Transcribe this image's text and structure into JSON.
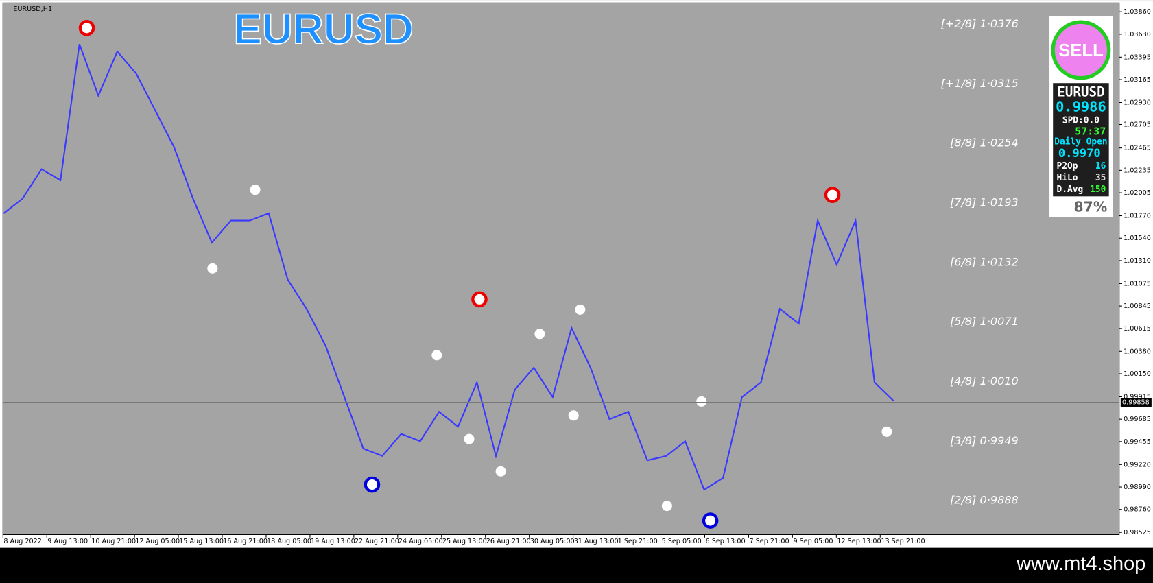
{
  "window": {
    "label": "EURUSD,H1"
  },
  "title": "EURUSD",
  "chart": {
    "type": "line",
    "ylim": [
      0.98502,
      1.0395
    ],
    "yticks": [
      {
        "value": 1.0386,
        "label": "1.03860"
      },
      {
        "value": 1.0363,
        "label": "1.03630"
      },
      1.03395,
      1.03165,
      {
        "value": 1.0293,
        "label": "1.02930"
      },
      1.02705,
      1.02465,
      1.02235,
      1.02005,
      {
        "value": 1.0177,
        "label": "1.01770"
      },
      {
        "value": 1.0154,
        "label": "1.01540"
      },
      {
        "value": 1.0131,
        "label": "1.01310"
      },
      1.01075,
      1.00845,
      1.00615,
      {
        "value": 1.0038,
        "label": "1.00380"
      },
      {
        "value": 1.0015,
        "label": "1.00150"
      },
      0.99915,
      0.99685,
      0.99455,
      {
        "value": 0.9922,
        "label": "0.99220"
      },
      {
        "value": 0.9899,
        "label": "0.98990"
      },
      {
        "value": 0.9876,
        "label": "0.98760"
      },
      0.98525
    ],
    "x_labels": [
      "8 Aug 2022",
      "9 Aug 13:00",
      "10 Aug 21:00",
      "12 Aug 05:00",
      "15 Aug 13:00",
      "16 Aug 21:00",
      "18 Aug 05:00",
      "19 Aug 13:00",
      "22 Aug 21:00",
      "24 Aug 05:00",
      "25 Aug 13:00",
      "26 Aug 21:00",
      "30 Aug 05:00",
      "31 Aug 13:00",
      "1 Sep 21:00",
      "5 Sep 05:00",
      "6 Sep 13:00",
      "7 Sep 21:00",
      "9 Sep 05:00",
      "12 Sep 13:00",
      "13 Sep 21:00"
    ],
    "series": [
      {
        "name": "Price",
        "color": "#3a3aff",
        "values": [
          1.01795,
          1.01946,
          1.02247,
          1.02134,
          1.03528,
          1.03001,
          1.03453,
          1.03227,
          1.0285,
          1.02473,
          1.01946,
          1.01494,
          1.0172,
          1.0172,
          1.01795,
          1.01117,
          1.00815,
          1.00439,
          0.99911,
          0.99384,
          0.99308,
          0.99534,
          0.99459,
          0.99761,
          0.9961,
          1.00062,
          0.99308,
          0.99987,
          1.00213,
          0.99911,
          1.0062,
          1.00213,
          0.99685,
          0.99761,
          0.99263,
          0.99308,
          0.99459,
          0.98962,
          0.99082,
          0.99911,
          1.00062,
          1.00815,
          1.00665,
          1.0172,
          1.01268,
          1.0172,
          1.00062,
          0.99874
        ]
      }
    ],
    "current_price": 0.99858,
    "murrey_levels": [
      "[+2/8] 1·0376",
      "[+1/8] 1·0315",
      "[8/8] 1·0254",
      "[7/8] 1·0193",
      "[6/8] 1·0132",
      "[5/8] 1·0071",
      "[4/8] 1·0010",
      "[3/8] 0·9949",
      "[2/8] 0·9888"
    ]
  },
  "panel": {
    "signal": "SELL",
    "symbol": "EURUSD",
    "price": "0.9986",
    "spread": "SPD:0.0",
    "timer": "57:37",
    "daily_open_label": "Daily Open",
    "daily_open": "0.9970",
    "rows": [
      [
        "P2Op",
        "16"
      ],
      [
        "HiLo",
        "35"
      ],
      [
        "D.Avg",
        "150"
      ]
    ],
    "percent": "87%"
  },
  "footer": "www.mt4.shop"
}
